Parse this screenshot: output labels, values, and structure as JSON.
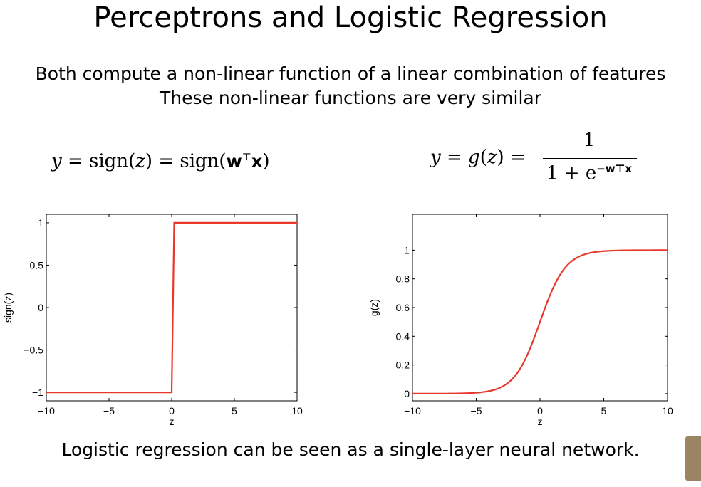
{
  "slide": {
    "title": "Perceptrons and Logistic Regression",
    "subtitle_line1": "Both compute a non-linear function of a linear combination of features",
    "subtitle_line2": "These non-linear functions are very similar",
    "conclusion": "Logistic regression can be seen as a single-layer neural network."
  },
  "formulas": {
    "left": {
      "y": "y",
      "eq1": " = sign(",
      "z": "z",
      "eq2": ") = sign(",
      "w": "w",
      "top": "⊤",
      "x": "x",
      "close": ")"
    },
    "right": {
      "lhs_y": "y",
      "lhs_eq": " = ",
      "lhs_g": "g",
      "lhs_open": "(",
      "lhs_z": "z",
      "lhs_close": ")",
      "lhs_eq2": " =",
      "numerator": "1",
      "denominator_base": "1 + ",
      "denominator_e": "e",
      "denominator_exp": "−w⊤x"
    }
  },
  "chart_data": [
    {
      "type": "line",
      "function": "sign",
      "ylabel": "sign(z)",
      "xlabel": "z",
      "xlim": [
        -10,
        10
      ],
      "ylim": [
        -1.1,
        1.1
      ],
      "xticks": [
        "−10",
        "−5",
        "0",
        "5",
        "10"
      ],
      "yticks": [
        "−1",
        "−0.5",
        "0",
        "0.5",
        "1"
      ],
      "xtick_values": [
        -10,
        -5,
        0,
        5,
        10
      ],
      "ytick_values": [
        -1,
        -0.5,
        0,
        0.5,
        1
      ],
      "series": [
        {
          "x": [
            -10,
            0,
            0.2,
            10
          ],
          "y": [
            -1,
            -1,
            1,
            1
          ],
          "color": "#e8382c"
        }
      ]
    },
    {
      "type": "line",
      "function": "logistic",
      "ylabel": "g(z)",
      "xlabel": "z",
      "xlim": [
        -10,
        10
      ],
      "ylim": [
        -0.05,
        1.25
      ],
      "xticks": [
        "−10",
        "−5",
        "0",
        "5",
        "10"
      ],
      "yticks": [
        "0",
        "0.2",
        "0.4",
        "0.6",
        "0.8",
        "1"
      ],
      "xtick_values": [
        -10,
        -5,
        0,
        5,
        10
      ],
      "ytick_values": [
        0,
        0.2,
        0.4,
        0.6,
        0.8,
        1
      ],
      "series": [
        {
          "x": [
            -10,
            -8,
            -6,
            -5,
            -4,
            -3,
            -2,
            -1,
            0,
            1,
            2,
            3,
            4,
            5,
            6,
            8,
            10
          ],
          "y": [
            0.0,
            0.0003,
            0.0025,
            0.0067,
            0.018,
            0.047,
            0.12,
            0.27,
            0.5,
            0.73,
            0.88,
            0.953,
            0.982,
            0.993,
            0.9975,
            0.9997,
            1.0
          ],
          "color": "#e8382c"
        }
      ]
    }
  ]
}
